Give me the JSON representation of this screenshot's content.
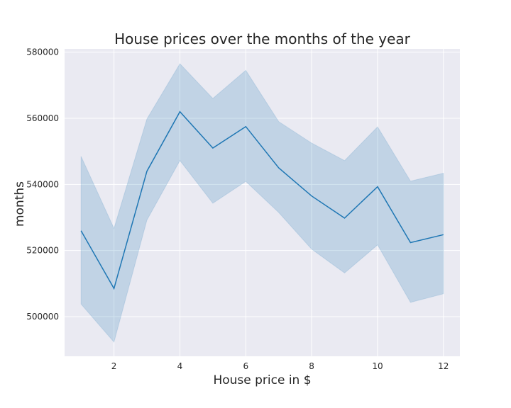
{
  "chart_data": {
    "type": "line",
    "title": "House prices over the months of the year",
    "xlabel": "House price in $",
    "ylabel": "months",
    "xlim": [
      0.5,
      12.5
    ],
    "ylim": [
      488000,
      581000
    ],
    "x_ticks": [
      2,
      4,
      6,
      8,
      10,
      12
    ],
    "y_ticks": [
      500000,
      520000,
      540000,
      560000,
      580000
    ],
    "y_tick_labels": [
      "500000",
      "520000",
      "540000",
      "560000",
      "580000"
    ],
    "grid": true,
    "background": "#eaeaf2",
    "line_color": "#1f77b4",
    "band_color": "#1f77b4",
    "series": [
      {
        "x": [
          1,
          2,
          3,
          4,
          5,
          6,
          7,
          8,
          9,
          10,
          11,
          12
        ],
        "values": [
          526000,
          508500,
          544000,
          562000,
          551000,
          557500,
          545000,
          536500,
          529800,
          539300,
          522400,
          524800
        ],
        "ci_upper": [
          548500,
          526700,
          559800,
          576500,
          566000,
          574500,
          559000,
          552500,
          547200,
          557400,
          541000,
          543400
        ],
        "ci_lower": [
          503800,
          492300,
          529200,
          547200,
          534300,
          540900,
          531500,
          520400,
          513200,
          521700,
          504300,
          506900
        ]
      }
    ]
  }
}
